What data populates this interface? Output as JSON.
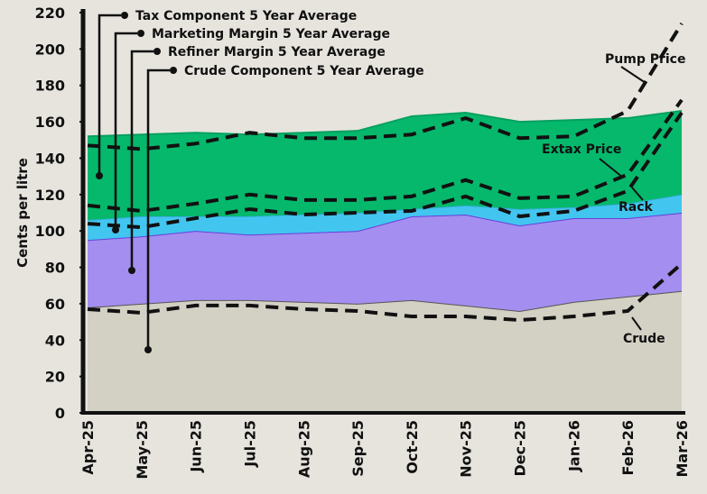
{
  "chart_data": {
    "type": "stacked_area_line",
    "y_label": "Cents per litre",
    "categories": [
      "Apr-25",
      "May-25",
      "Jun-25",
      "Jul-25",
      "Aug-25",
      "Sep-25",
      "Oct-25",
      "Nov-25",
      "Dec-25",
      "Jan-26",
      "Feb-26",
      "Mar-26"
    ],
    "ylim": [
      0,
      220
    ],
    "yticks": [
      0,
      20,
      40,
      60,
      80,
      100,
      120,
      140,
      160,
      180,
      200,
      220
    ],
    "areas": [
      {
        "name": "Crude Component 5 Year Average",
        "color": "#d3d0c4",
        "values": [
          58,
          60,
          62,
          62,
          61,
          60,
          62,
          59,
          56,
          61,
          64,
          67
        ]
      },
      {
        "name": "Refiner Margin 5 Year Average",
        "color": "#a48ef0",
        "values": [
          37,
          37,
          38,
          36,
          38,
          40,
          46,
          50,
          47,
          46,
          43,
          43
        ]
      },
      {
        "name": "Marketing Margin 5 Year Average",
        "color": "#42c6f0",
        "values": [
          11,
          11,
          8,
          10,
          10,
          10,
          4,
          5,
          9,
          6,
          8,
          10
        ]
      },
      {
        "name": "Tax Component 5 Year Average",
        "color": "#05b86c",
        "values": [
          46,
          45,
          46,
          45,
          45,
          45,
          51,
          51,
          48,
          48,
          47,
          46
        ]
      }
    ],
    "series": [
      {
        "name": "Crude",
        "color": "#111111",
        "values": [
          57,
          55,
          59,
          59,
          57,
          56,
          53,
          53,
          51,
          53,
          56,
          82
        ]
      },
      {
        "name": "Rack",
        "color": "#111111",
        "values": [
          104,
          102,
          107,
          112,
          109,
          110,
          111,
          119,
          108,
          111,
          122,
          165
        ]
      },
      {
        "name": "Extax Price",
        "color": "#111111",
        "values": [
          114,
          111,
          115,
          120,
          117,
          117,
          119,
          128,
          118,
          119,
          131,
          172
        ]
      },
      {
        "name": "Pump Price",
        "color": "#111111",
        "values": [
          147,
          145,
          148,
          154,
          151,
          151,
          153,
          162,
          151,
          152,
          166,
          214
        ]
      }
    ]
  }
}
